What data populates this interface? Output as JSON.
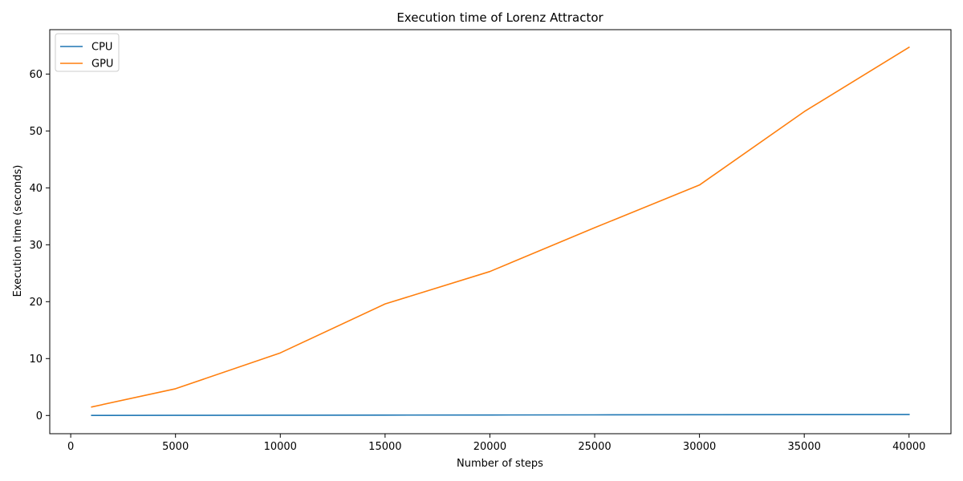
{
  "chart_data": {
    "type": "line",
    "title": "Execution time of Lorenz Attractor",
    "xlabel": "Number of steps",
    "ylabel": "Execution time (seconds)",
    "xlim": [
      -1000,
      42000
    ],
    "ylim": [
      -3.2,
      67.8
    ],
    "xticks": [
      0,
      5000,
      10000,
      15000,
      20000,
      25000,
      30000,
      35000,
      40000
    ],
    "yticks": [
      0,
      10,
      20,
      30,
      40,
      50,
      60
    ],
    "x": [
      1000,
      5000,
      10000,
      15000,
      20000,
      25000,
      30000,
      35000,
      40000
    ],
    "series": [
      {
        "name": "CPU",
        "color": "#1f77b4",
        "values": [
          0.01,
          0.03,
          0.05,
          0.07,
          0.09,
          0.11,
          0.13,
          0.15,
          0.17
        ]
      },
      {
        "name": "GPU",
        "color": "#ff7f0e",
        "values": [
          1.5,
          4.7,
          11.0,
          19.6,
          25.3,
          33.0,
          40.5,
          53.4,
          64.7
        ]
      }
    ],
    "legend": "upper-left",
    "grid": false
  }
}
